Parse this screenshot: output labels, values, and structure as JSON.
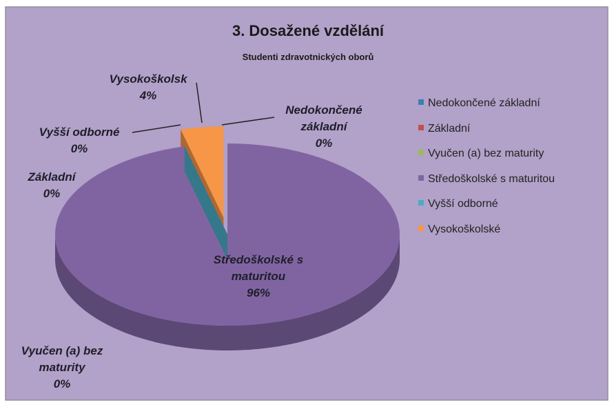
{
  "chart_data": {
    "type": "pie",
    "title": "3. Dosažené vzdělání",
    "subtitle": "Studenti zdravotnických oborů",
    "categories": [
      "Nedokončené základní",
      "Základní",
      "Vyučen (a) bez maturity",
      "Středoškolské s maturitou",
      "Vyšší odborné",
      "Vysokoškolské"
    ],
    "values": [
      0,
      0,
      0,
      96,
      0,
      4
    ],
    "value_labels": [
      "0%",
      "0%",
      "0%",
      "96%",
      "0%",
      "4%"
    ],
    "data_label_names": [
      "Nedokončené základní",
      "Základní",
      "Vyučen (a) bez maturity",
      "Středoškolské s maturitou",
      "Vyšší odborné",
      "Vysokoškolsk"
    ],
    "colors": [
      "#3d7fae",
      "#c0504d",
      "#9bbb59",
      "#8064a2",
      "#4bacc6",
      "#f79646"
    ],
    "legend": "right",
    "three_d": true
  }
}
